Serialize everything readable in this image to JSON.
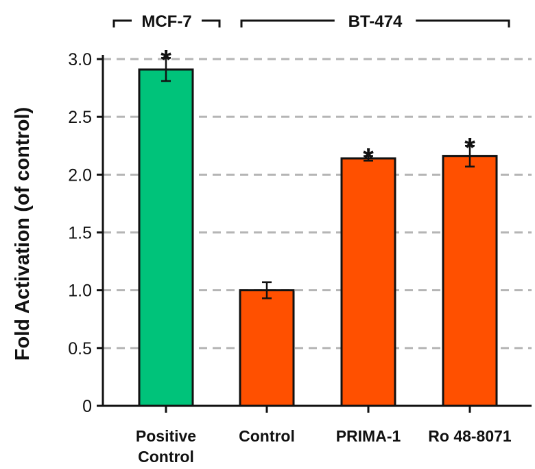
{
  "chart_data": {
    "type": "bar",
    "title": "",
    "xlabel": "",
    "ylabel": "Fold Activation (of control)",
    "ylim": [
      0,
      3.0
    ],
    "yticks": [
      "0",
      "0.5",
      "1.0",
      "1.5",
      "2.0",
      "2.5",
      "3.0"
    ],
    "grid": "horizontal-dashed",
    "categories": [
      {
        "lines": [
          "Positive",
          "Control"
        ]
      },
      {
        "lines": [
          "Control"
        ]
      },
      {
        "lines": [
          "PRIMA-1"
        ]
      },
      {
        "lines": [
          "Ro 48-8071"
        ]
      }
    ],
    "values": [
      2.91,
      1.0,
      2.14,
      2.16
    ],
    "errors": [
      0.1,
      0.07,
      0.02,
      0.09
    ],
    "significance": [
      "*",
      "",
      "*",
      "*"
    ],
    "bar_colors": [
      "#00c37a",
      "#ff5000",
      "#ff5000",
      "#ff5000"
    ],
    "groups": [
      {
        "label": "MCF-7",
        "categories": [
          0
        ]
      },
      {
        "label": "BT-474",
        "categories": [
          1,
          2,
          3
        ]
      }
    ]
  }
}
